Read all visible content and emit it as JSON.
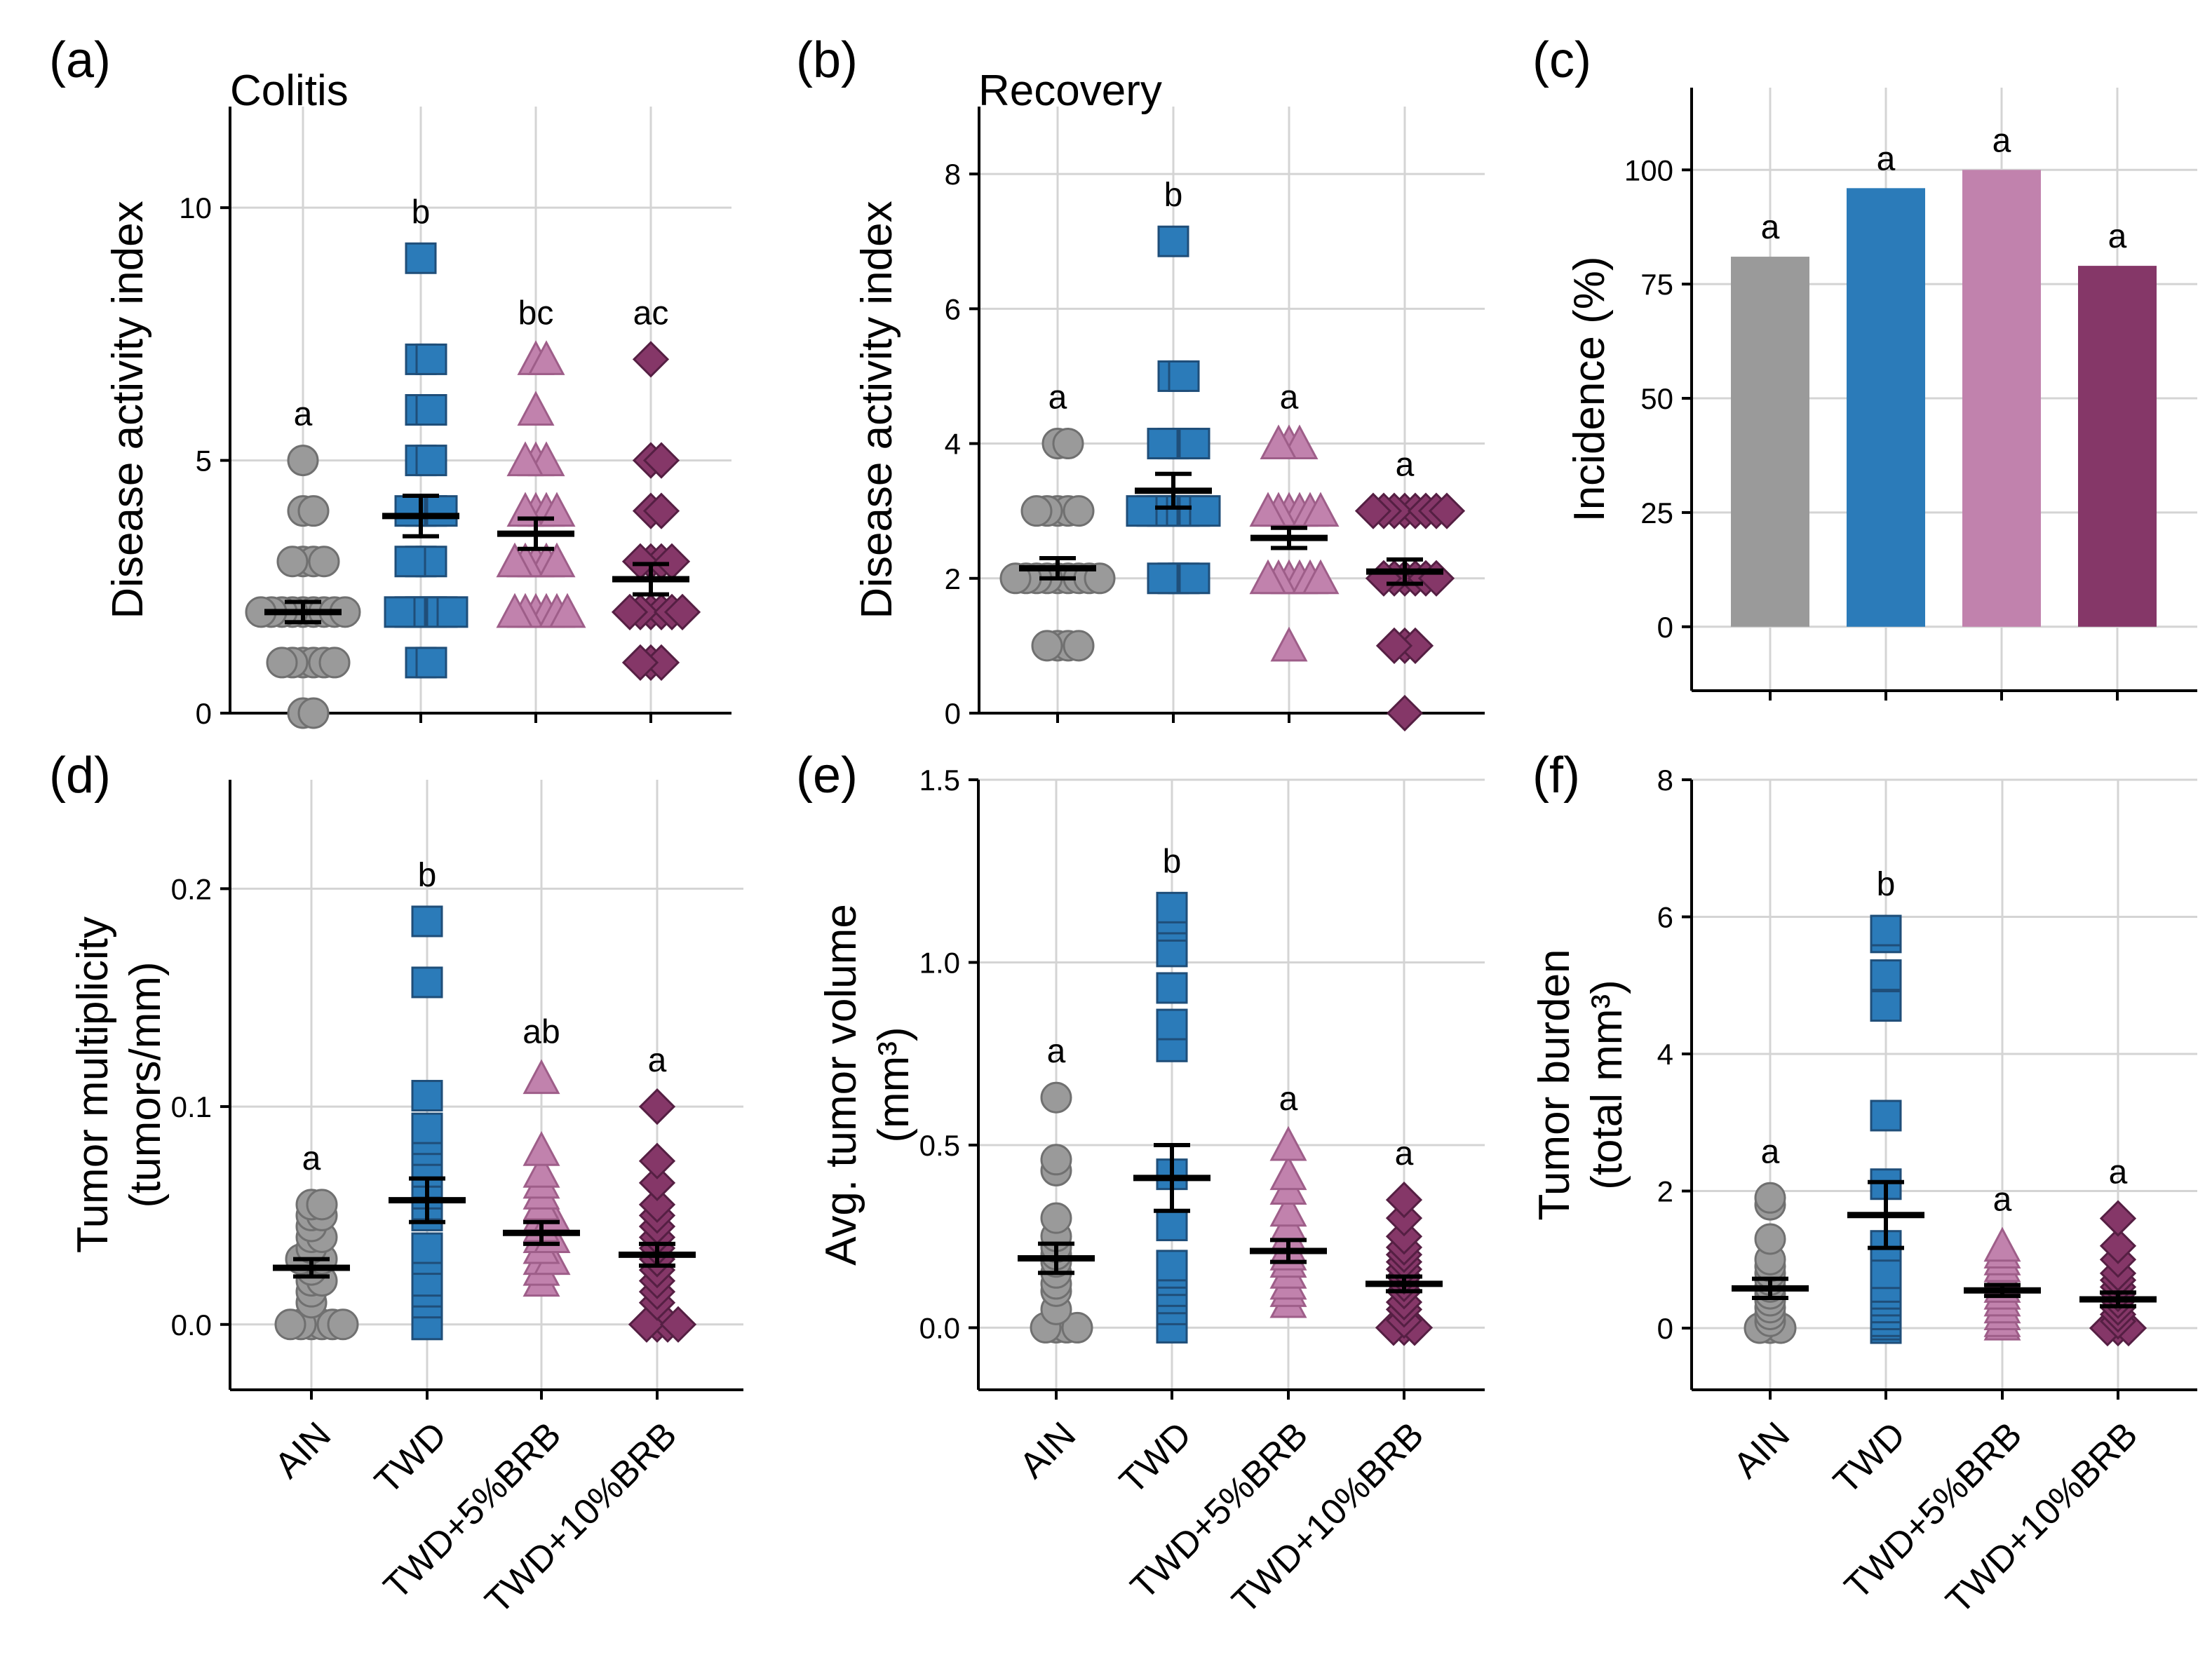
{
  "colors": {
    "AIN": "#9a9a9a",
    "TWD": "#2b7bb9",
    "TWD+5%BRB": "#c182ad",
    "TWD+10%BRB": "#853768"
  },
  "edge_colors": {
    "AIN": "#707070",
    "TWD": "#1f4e79",
    "TWD+5%BRB": "#9e5e89",
    "TWD+10%BRB": "#551f43"
  },
  "chart_data": [
    {
      "id": "a",
      "panel_label": "(a)",
      "subtitle": "Colitis",
      "type": "scatter",
      "ylabel": [
        "Disease activity index"
      ],
      "ylim": [
        0,
        12
      ],
      "yticks": [
        0,
        5,
        10
      ],
      "categories": [
        "AIN",
        "TWD",
        "TWD+5%BRB",
        "TWD+10%BRB"
      ],
      "markers": [
        "circle",
        "square",
        "triangle",
        "diamond"
      ],
      "significance": [
        "a",
        "b",
        "bc",
        "ac"
      ],
      "series": [
        {
          "name": "AIN",
          "values": [
            0,
            0,
            1,
            1,
            1,
            1,
            1,
            1,
            2,
            2,
            2,
            2,
            2,
            2,
            2,
            2,
            2,
            3,
            3,
            3,
            3,
            4,
            4,
            5
          ],
          "mean": 2.0,
          "sem": 0.2
        },
        {
          "name": "TWD",
          "values": [
            1,
            1,
            2,
            2,
            2,
            2,
            2,
            2,
            3,
            3,
            3,
            4,
            4,
            4,
            4,
            5,
            5,
            6,
            6,
            7,
            7,
            9
          ],
          "mean": 3.9,
          "sem": 0.4
        },
        {
          "name": "TWD+5%BRB",
          "values": [
            2,
            2,
            2,
            2,
            2,
            2,
            3,
            3,
            3,
            3,
            3,
            4,
            4,
            4,
            4,
            5,
            5,
            5,
            6,
            7,
            7
          ],
          "mean": 3.55,
          "sem": 0.3
        },
        {
          "name": "TWD+10%BRB",
          "values": [
            1,
            1,
            1,
            2,
            2,
            2,
            2,
            2,
            2,
            3,
            3,
            3,
            3,
            4,
            4,
            5,
            5,
            7
          ],
          "mean": 2.65,
          "sem": 0.3
        }
      ]
    },
    {
      "id": "b",
      "panel_label": "(b)",
      "subtitle": "Recovery",
      "type": "scatter",
      "ylabel": [
        "Disease activity index"
      ],
      "ylim": [
        0,
        9
      ],
      "yticks": [
        0,
        2,
        4,
        6,
        8
      ],
      "categories": [
        "AIN",
        "TWD",
        "TWD+5%BRB",
        "TWD+10%BRB"
      ],
      "markers": [
        "circle",
        "square",
        "triangle",
        "diamond"
      ],
      "significance": [
        "a",
        "b",
        "a",
        "a"
      ],
      "series": [
        {
          "name": "AIN",
          "values": [
            1,
            1,
            1,
            1,
            2,
            2,
            2,
            2,
            2,
            2,
            2,
            2,
            2,
            3,
            3,
            3,
            3,
            3,
            4,
            4
          ],
          "mean": 2.15,
          "sem": 0.15
        },
        {
          "name": "TWD",
          "values": [
            2,
            2,
            2,
            2,
            3,
            3,
            3,
            3,
            3,
            3,
            3,
            4,
            4,
            4,
            4,
            5,
            5,
            7
          ],
          "mean": 3.3,
          "sem": 0.25
        },
        {
          "name": "TWD+5%BRB",
          "values": [
            1,
            2,
            2,
            2,
            2,
            2,
            2,
            3,
            3,
            3,
            3,
            3,
            3,
            4,
            4,
            4
          ],
          "mean": 2.6,
          "sem": 0.15
        },
        {
          "name": "TWD+10%BRB",
          "values": [
            0,
            1,
            1,
            1,
            2,
            2,
            2,
            2,
            2,
            2,
            3,
            3,
            3,
            3,
            3,
            3,
            3,
            3
          ],
          "mean": 2.1,
          "sem": 0.18
        }
      ]
    },
    {
      "id": "c",
      "panel_label": "(c)",
      "subtitle": "",
      "type": "bar",
      "ylabel": [
        "Incidence (%)"
      ],
      "ylim": [
        -14,
        118
      ],
      "yticks": [
        0,
        25,
        50,
        75,
        100
      ],
      "categories": [
        "AIN",
        "TWD",
        "TWD+5%BRB",
        "TWD+10%BRB"
      ],
      "values": [
        81,
        96,
        100,
        79
      ],
      "significance": [
        "a",
        "a",
        "a",
        "a"
      ]
    },
    {
      "id": "d",
      "panel_label": "(d)",
      "subtitle": "",
      "type": "scatter",
      "ylabel": [
        "Tumor multiplicity",
        "(tumors/mm)"
      ],
      "ylim": [
        -0.03,
        0.25
      ],
      "yticks": [
        0.0,
        0.1,
        0.2
      ],
      "ytick_decimals": 1,
      "categories": [
        "AIN",
        "TWD",
        "TWD+5%BRB",
        "TWD+10%BRB"
      ],
      "markers": [
        "circle",
        "square",
        "triangle",
        "diamond"
      ],
      "significance": [
        "a",
        "b",
        "ab",
        "a"
      ],
      "series": [
        {
          "name": "AIN",
          "values": [
            0,
            0,
            0,
            0,
            0,
            0,
            0.01,
            0.015,
            0.02,
            0.02,
            0.025,
            0.03,
            0.03,
            0.03,
            0.035,
            0.04,
            0.04,
            0.045,
            0.05,
            0.05,
            0.055,
            0.055
          ],
          "mean": 0.026,
          "sem": 0.004
        },
        {
          "name": "TWD",
          "values": [
            0,
            0.01,
            0.015,
            0.02,
            0.03,
            0.035,
            0.05,
            0.055,
            0.06,
            0.065,
            0.07,
            0.08,
            0.085,
            0.09,
            0.105,
            0.157,
            0.185
          ],
          "mean": 0.057,
          "sem": 0.01
        },
        {
          "name": "TWD+5%BRB",
          "values": [
            0.02,
            0.025,
            0.03,
            0.03,
            0.035,
            0.04,
            0.04,
            0.045,
            0.05,
            0.05,
            0.055,
            0.06,
            0.065,
            0.07,
            0.08,
            0.113
          ],
          "mean": 0.042,
          "sem": 0.005
        },
        {
          "name": "TWD+10%BRB",
          "values": [
            0,
            0,
            0,
            0,
            0.01,
            0.015,
            0.02,
            0.025,
            0.03,
            0.035,
            0.04,
            0.045,
            0.05,
            0.055,
            0.065,
            0.075,
            0.1
          ],
          "mean": 0.032,
          "sem": 0.005
        }
      ]
    },
    {
      "id": "e",
      "panel_label": "(e)",
      "subtitle": "",
      "type": "scatter",
      "ylabel": [
        "Avg. tumor volume",
        "(mm³)"
      ],
      "ylim": [
        -0.17,
        1.5
      ],
      "yticks": [
        0.0,
        0.5,
        1.0,
        1.5
      ],
      "ytick_decimals": 1,
      "categories": [
        "AIN",
        "TWD",
        "TWD+5%BRB",
        "TWD+10%BRB"
      ],
      "markers": [
        "circle",
        "square",
        "triangle",
        "diamond"
      ],
      "significance": [
        "a",
        "b",
        "a",
        "a"
      ],
      "series": [
        {
          "name": "AIN",
          "values": [
            0,
            0,
            0,
            0,
            0.05,
            0.1,
            0.12,
            0.15,
            0.18,
            0.2,
            0.22,
            0.25,
            0.3,
            0.43,
            0.46,
            0.63
          ],
          "mean": 0.19,
          "sem": 0.04
        },
        {
          "name": "TWD",
          "values": [
            0,
            0.05,
            0.08,
            0.1,
            0.13,
            0.15,
            0.17,
            0.28,
            0.42,
            0.77,
            0.83,
            0.93,
            1.03,
            1.1,
            1.12,
            1.15
          ],
          "mean": 0.41,
          "sem": 0.09
        },
        {
          "name": "TWD+5%BRB",
          "values": [
            0.07,
            0.1,
            0.12,
            0.15,
            0.18,
            0.2,
            0.22,
            0.25,
            0.28,
            0.32,
            0.38,
            0.42,
            0.5
          ],
          "mean": 0.21,
          "sem": 0.03
        },
        {
          "name": "TWD+10%BRB",
          "values": [
            0,
            0,
            0,
            0.02,
            0.05,
            0.07,
            0.1,
            0.12,
            0.14,
            0.16,
            0.18,
            0.2,
            0.22,
            0.25,
            0.3,
            0.35
          ],
          "mean": 0.12,
          "sem": 0.02
        }
      ]
    },
    {
      "id": "f",
      "panel_label": "(f)",
      "subtitle": "",
      "type": "scatter",
      "ylabel": [
        "Tumor burden",
        "(total mm³)"
      ],
      "ylim": [
        -0.9,
        8
      ],
      "yticks": [
        0,
        2,
        4,
        6,
        8
      ],
      "categories": [
        "AIN",
        "TWD",
        "TWD+5%BRB",
        "TWD+10%BRB"
      ],
      "markers": [
        "circle",
        "square",
        "triangle",
        "diamond"
      ],
      "significance": [
        "a",
        "b",
        "a",
        "a"
      ],
      "series": [
        {
          "name": "AIN",
          "values": [
            0,
            0,
            0,
            0.1,
            0.2,
            0.3,
            0.4,
            0.5,
            0.6,
            0.7,
            0.8,
            0.9,
            1.0,
            1.3,
            1.8,
            1.9
          ],
          "mean": 0.58,
          "sem": 0.14
        },
        {
          "name": "TWD",
          "values": [
            0,
            0.05,
            0.1,
            0.2,
            0.3,
            0.4,
            0.5,
            0.6,
            0.8,
            1.2,
            2.1,
            3.1,
            4.7,
            5.15,
            5.7,
            5.8
          ],
          "mean": 1.65,
          "sem": 0.48
        },
        {
          "name": "TWD+5%BRB",
          "values": [
            0.05,
            0.1,
            0.2,
            0.3,
            0.4,
            0.5,
            0.6,
            0.7,
            0.8,
            0.9,
            1.0,
            1.1,
            1.2
          ],
          "mean": 0.55,
          "sem": 0.08
        },
        {
          "name": "TWD+10%BRB",
          "values": [
            0,
            0,
            0,
            0.1,
            0.2,
            0.3,
            0.4,
            0.5,
            0.6,
            0.7,
            0.8,
            1.0,
            1.2,
            1.6
          ],
          "mean": 0.42,
          "sem": 0.1
        }
      ]
    }
  ]
}
